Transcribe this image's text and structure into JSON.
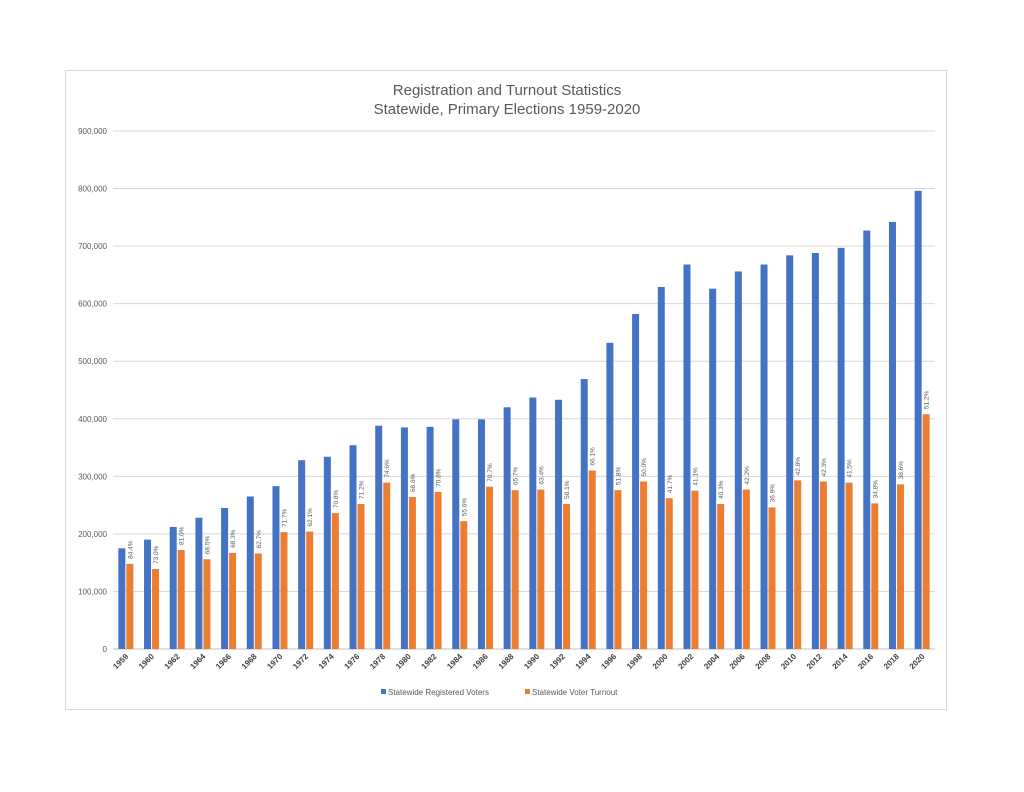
{
  "chart_data": {
    "type": "bar",
    "title": "Registration and Turnout Statistics",
    "subtitle": "Statewide, Primary Elections 1959-2020",
    "xlabel": "",
    "ylabel": "",
    "ylim": [
      0,
      900000
    ],
    "yticks": [
      "0",
      "100,000",
      "200,000",
      "300,000",
      "400,000",
      "500,000",
      "600,000",
      "700,000",
      "800,000",
      "900,000"
    ],
    "grid": true,
    "legend_position": "bottom",
    "categories": [
      "1959",
      "1960",
      "1962",
      "1964",
      "1966",
      "1968",
      "1970",
      "1972",
      "1974",
      "1976",
      "1978",
      "1980",
      "1982",
      "1984",
      "1986",
      "1988",
      "1990",
      "1992",
      "1994",
      "1996",
      "1998",
      "2000",
      "2002",
      "2004",
      "2006",
      "2008",
      "2010",
      "2012",
      "2014",
      "2016",
      "2018",
      "2020"
    ],
    "series": [
      {
        "name": "Statewide Registered Voters",
        "color": "#4472c4",
        "values": [
          175000,
          190000,
          212000,
          228000,
          245000,
          265000,
          283000,
          328000,
          334000,
          354000,
          388000,
          385000,
          386000,
          399000,
          399000,
          420000,
          437000,
          433000,
          469000,
          532000,
          582000,
          629000,
          668000,
          626000,
          656000,
          668000,
          684000,
          688000,
          697000,
          727000,
          742000,
          796000
        ]
      },
      {
        "name": "Statewide Voter Turnout",
        "color": "#ed7d31",
        "values": [
          148000,
          139000,
          172000,
          156000,
          167000,
          166000,
          203000,
          204000,
          236000,
          252000,
          289000,
          264000,
          273000,
          222000,
          282000,
          276000,
          277000,
          252000,
          310000,
          276000,
          291000,
          262000,
          275000,
          252000,
          277000,
          246000,
          293000,
          291000,
          289000,
          253000,
          286000,
          408000
        ],
        "data_labels": [
          "84.4%",
          "73.0%",
          "81.0%",
          "68.5%",
          "68.3%",
          "62.7%",
          "71.7%",
          "62.1%",
          "70.8%",
          "71.2%",
          "74.6%",
          "68.6%",
          "70.8%",
          "55.6%",
          "70.7%",
          "65.7%",
          "63.4%",
          "58.1%",
          "66.1%",
          "51.8%",
          "50.0%",
          "41.7%",
          "41.1%",
          "40.3%",
          "42.2%",
          "36.9%",
          "42.8%",
          "42.3%",
          "41.5%",
          "34.8%",
          "38.6%",
          "51.2%"
        ]
      }
    ]
  }
}
